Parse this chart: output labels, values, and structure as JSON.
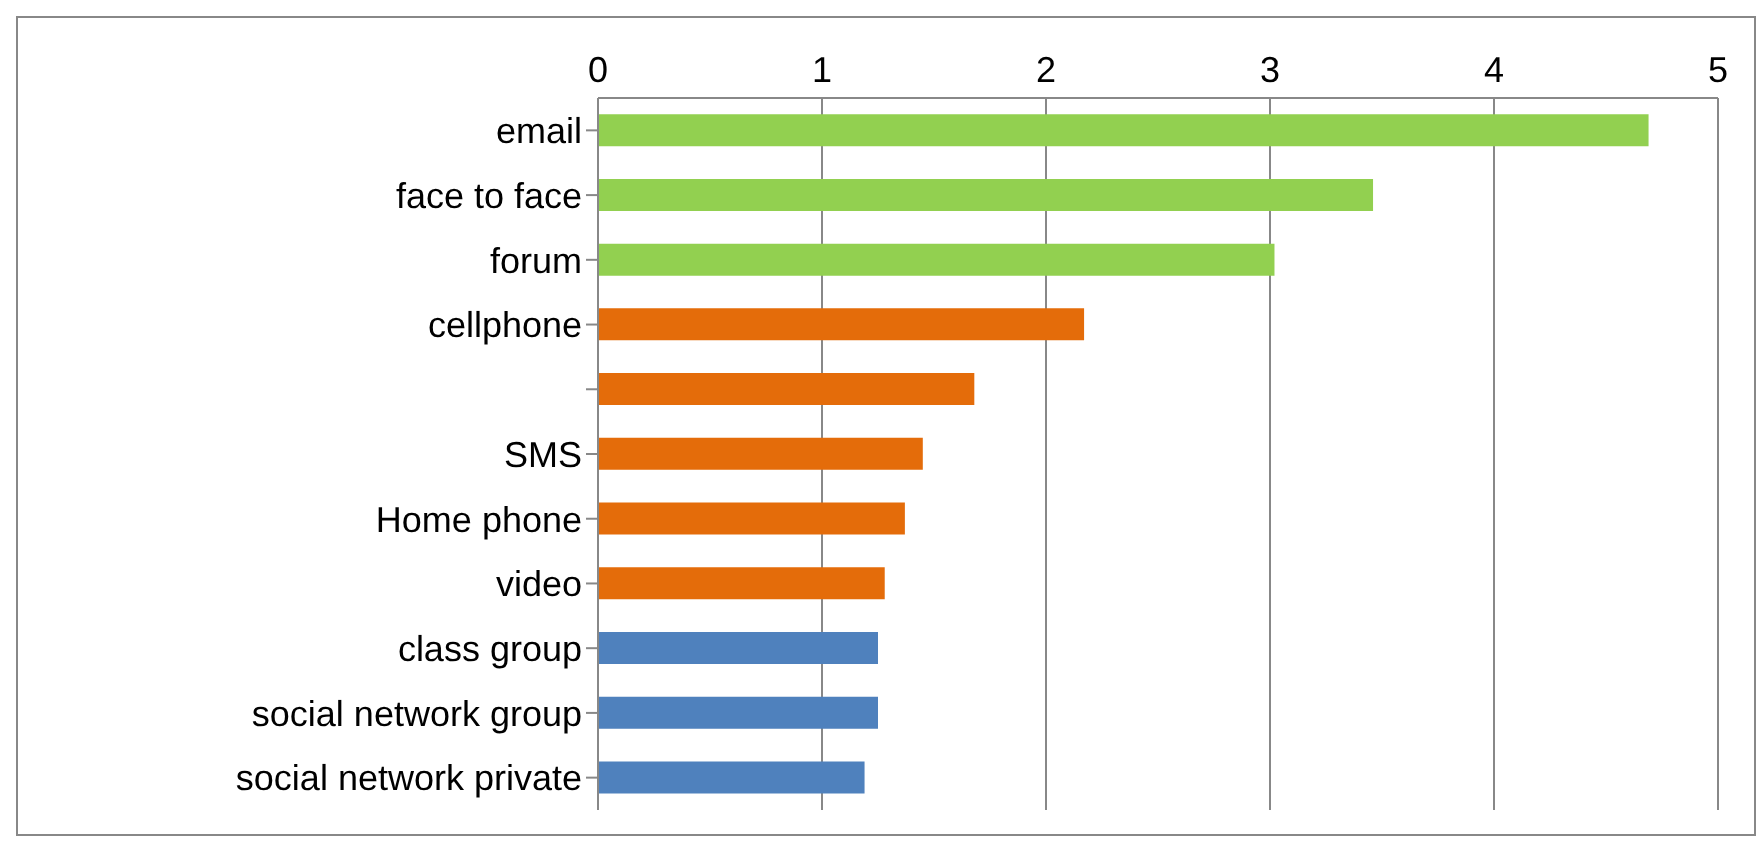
{
  "chart_data": {
    "type": "bar",
    "orientation": "horizontal",
    "categories": [
      "email",
      "face to face",
      "forum",
      "cellphone",
      null,
      "SMS",
      "Home phone",
      "video",
      "class group",
      "social network group",
      "social network private"
    ],
    "values": [
      4.69,
      3.46,
      3.02,
      2.17,
      1.68,
      1.45,
      1.37,
      1.28,
      1.25,
      1.25,
      1.19
    ],
    "colors": [
      "#92d050",
      "#92d050",
      "#92d050",
      "#e46c0a",
      "#e46c0a",
      "#e46c0a",
      "#e46c0a",
      "#e46c0a",
      "#4f81bd",
      "#4f81bd",
      "#4f81bd"
    ],
    "xlim": [
      0,
      5
    ],
    "xticks": [
      0,
      1,
      2,
      3,
      4,
      5
    ],
    "grid": "x"
  }
}
